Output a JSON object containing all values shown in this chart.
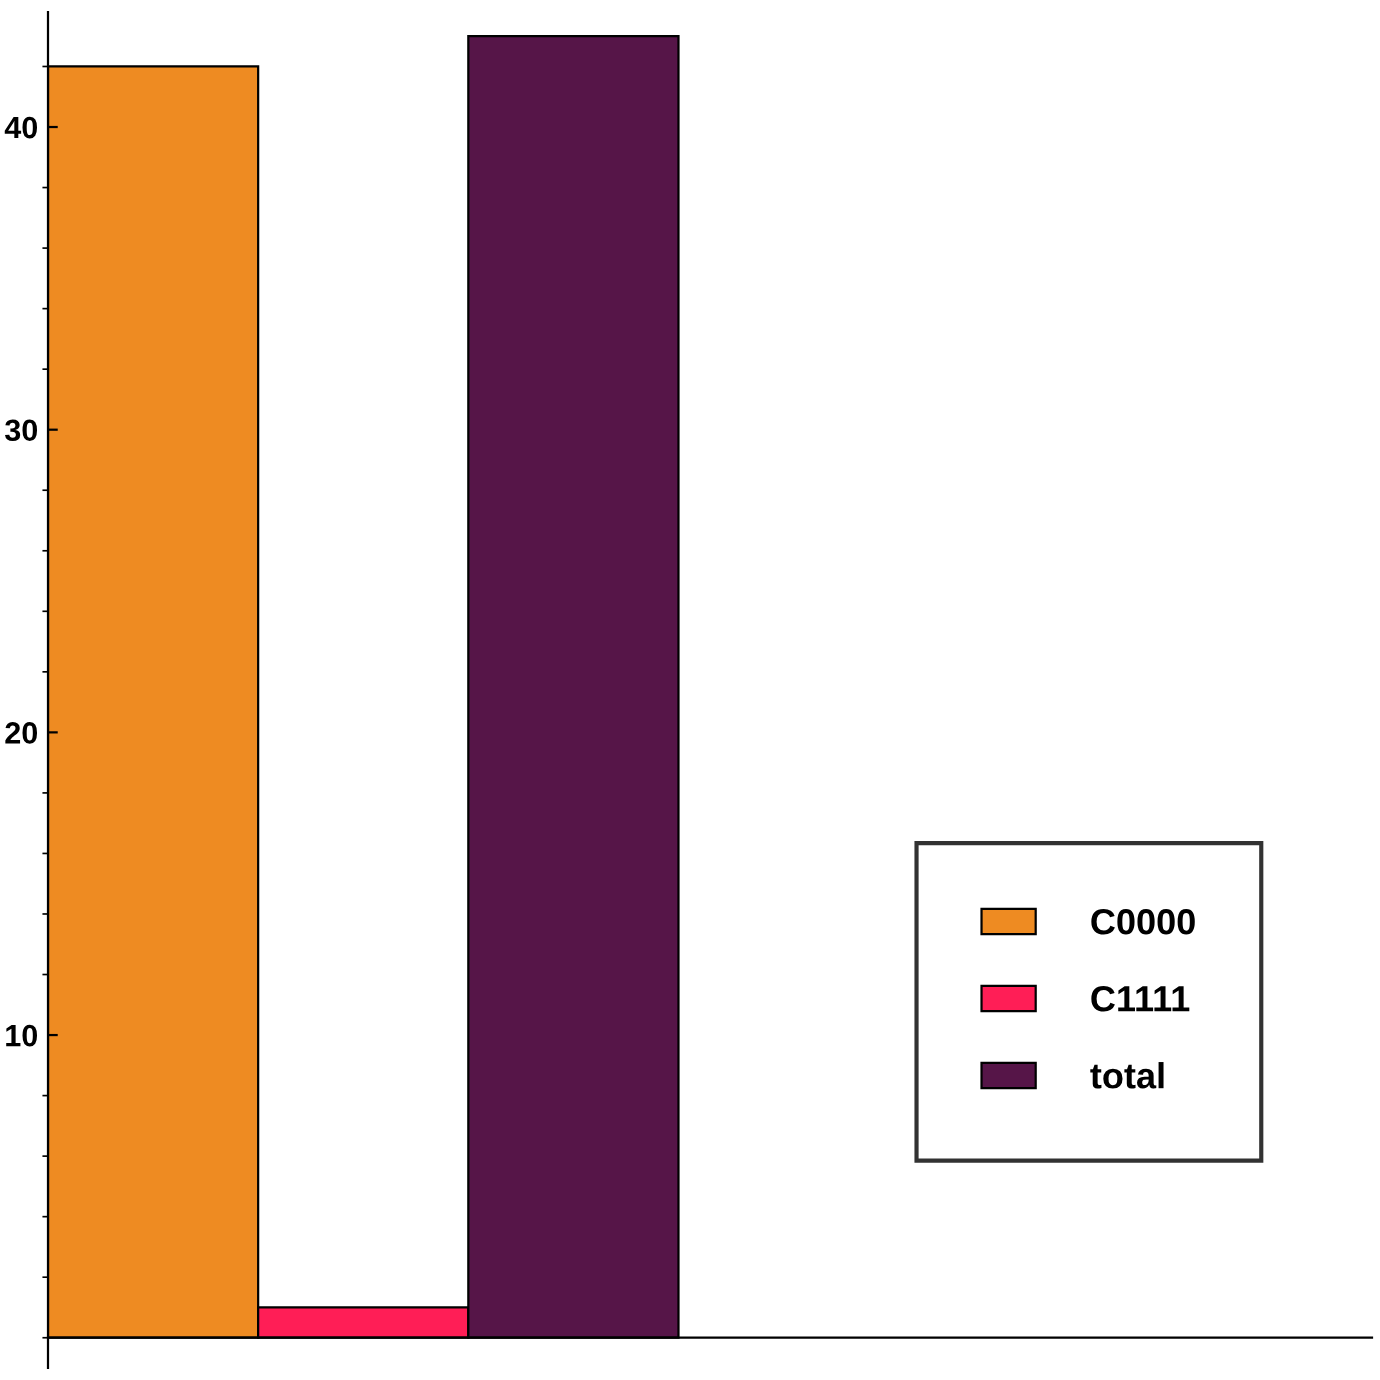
{
  "chart_data": {
    "type": "bar",
    "categories": [
      null
    ],
    "series": [
      {
        "name": "C0000",
        "color": "#ee8b22",
        "values": [
          42
        ]
      },
      {
        "name": "C1111",
        "color": "#ff1e56",
        "values": [
          1
        ]
      },
      {
        "name": "total",
        "color": "#561548",
        "values": [
          43
        ]
      }
    ],
    "ylim": [
      -1,
      43.8
    ],
    "yticks": [
      10,
      20,
      30,
      40
    ],
    "grid": false,
    "legend": "right"
  }
}
